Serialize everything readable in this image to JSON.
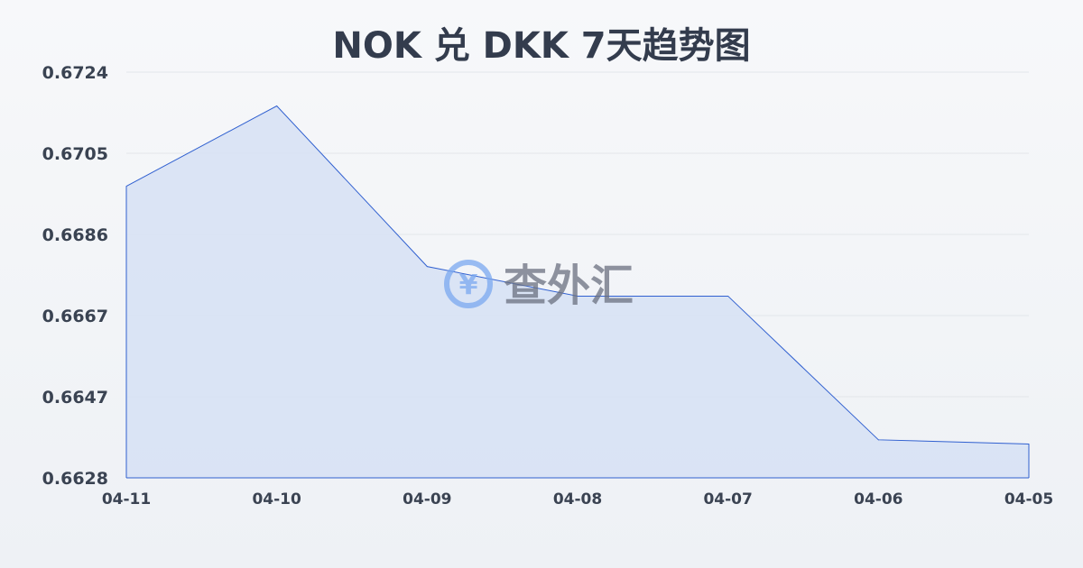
{
  "chart_data": {
    "type": "area",
    "title": "NOK 兑 DKK 7天趋势图",
    "categories": [
      "04-11",
      "04-10",
      "04-09",
      "04-08",
      "04-07",
      "04-06",
      "04-05"
    ],
    "series": [
      {
        "values": [
          0.6697,
          0.6716,
          0.6678,
          0.6671,
          0.6671,
          0.6637,
          0.6636
        ]
      }
    ],
    "yticks": [
      "0.6724",
      "0.6705",
      "0.6686",
      "0.6667",
      "0.6647",
      "0.6628"
    ],
    "ylim": [
      0.6628,
      0.6724
    ],
    "grid": true,
    "colors": {
      "line": "#3060d0",
      "fill": "#d6e0f5"
    }
  },
  "watermark": "查外汇"
}
